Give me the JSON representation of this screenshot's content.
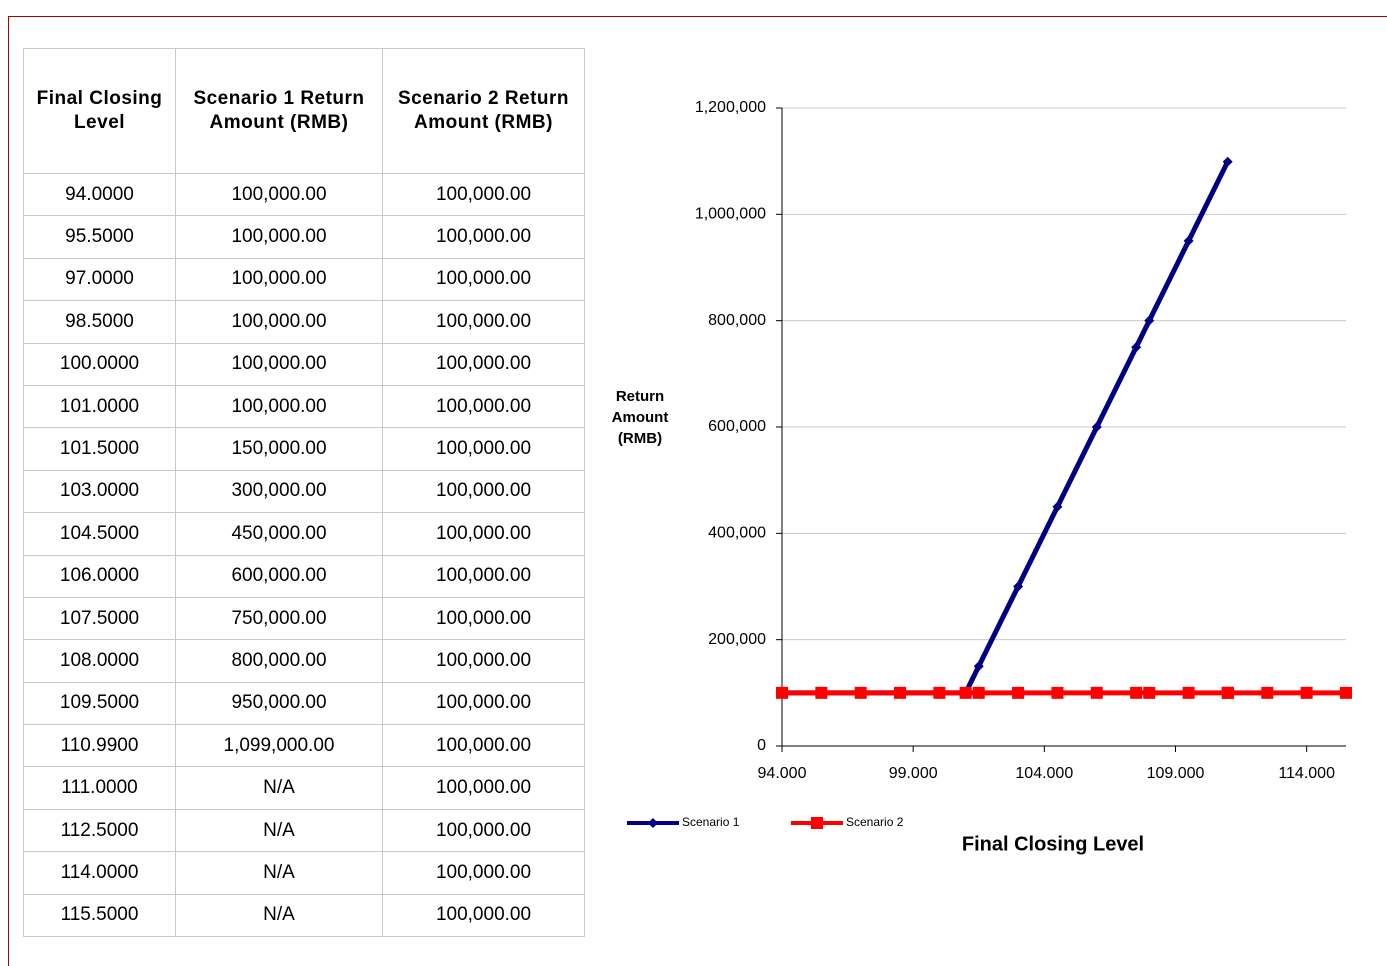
{
  "table": {
    "header": [
      "Final Closing Level",
      "Scenario 1 Return Amount (RMB)",
      "Scenario 2 Return Amount (RMB)"
    ],
    "rows": [
      [
        "94.0000",
        "100,000.00",
        "100,000.00"
      ],
      [
        "95.5000",
        "100,000.00",
        "100,000.00"
      ],
      [
        "97.0000",
        "100,000.00",
        "100,000.00"
      ],
      [
        "98.5000",
        "100,000.00",
        "100,000.00"
      ],
      [
        "100.0000",
        "100,000.00",
        "100,000.00"
      ],
      [
        "101.0000",
        "100,000.00",
        "100,000.00"
      ],
      [
        "101.5000",
        "150,000.00",
        "100,000.00"
      ],
      [
        "103.0000",
        "300,000.00",
        "100,000.00"
      ],
      [
        "104.5000",
        "450,000.00",
        "100,000.00"
      ],
      [
        "106.0000",
        "600,000.00",
        "100,000.00"
      ],
      [
        "107.5000",
        "750,000.00",
        "100,000.00"
      ],
      [
        "108.0000",
        "800,000.00",
        "100,000.00"
      ],
      [
        "109.5000",
        "950,000.00",
        "100,000.00"
      ],
      [
        "110.9900",
        "1,099,000.00",
        "100,000.00"
      ],
      [
        "111.0000",
        "N/A",
        "100,000.00"
      ],
      [
        "112.5000",
        "N/A",
        "100,000.00"
      ],
      [
        "114.0000",
        "N/A",
        "100,000.00"
      ],
      [
        "115.5000",
        "N/A",
        "100,000.00"
      ]
    ]
  },
  "chart_data": {
    "type": "line",
    "x_label": "Final Closing Level",
    "y_label": "Return Amount (RMB)",
    "xlim": [
      94,
      115.5
    ],
    "xticks": [
      {
        "value": 94,
        "label": "94.000"
      },
      {
        "value": 99,
        "label": "99.000"
      },
      {
        "value": 104,
        "label": "104.000"
      },
      {
        "value": 109,
        "label": "109.000"
      },
      {
        "value": 114,
        "label": "114.000"
      }
    ],
    "ylim": [
      0,
      1200000
    ],
    "yticks": [
      0,
      {
        "value": 200000,
        "label": "200,000"
      },
      {
        "value": 400000,
        "label": "400,000"
      },
      {
        "value": 600000,
        "label": "600,000"
      },
      {
        "value": 800000,
        "label": "800,000"
      },
      {
        "value": 1000000,
        "label": "1,000,000"
      },
      {
        "value": 1200000,
        "label": "1,200,000"
      }
    ],
    "grid": true,
    "series": [
      {
        "name": "Scenario 1",
        "color": "#000080",
        "marker": "diamond",
        "x": [
          94,
          95.5,
          97,
          98.5,
          100,
          101,
          101.5,
          103,
          104.5,
          106,
          107.5,
          108,
          109.5,
          110.99
        ],
        "values": [
          100000,
          100000,
          100000,
          100000,
          100000,
          100000,
          150000,
          300000,
          450000,
          600000,
          750000,
          800000,
          950000,
          1099000
        ]
      },
      {
        "name": "Scenario 2",
        "color": "#ff0000",
        "marker": "square",
        "x": [
          94,
          95.5,
          97,
          98.5,
          100,
          101,
          101.5,
          103,
          104.5,
          106,
          107.5,
          108,
          109.5,
          110.99,
          111,
          112.5,
          114,
          115.5
        ],
        "values": [
          100000,
          100000,
          100000,
          100000,
          100000,
          100000,
          100000,
          100000,
          100000,
          100000,
          100000,
          100000,
          100000,
          100000,
          100000,
          100000,
          100000,
          100000
        ]
      }
    ]
  }
}
